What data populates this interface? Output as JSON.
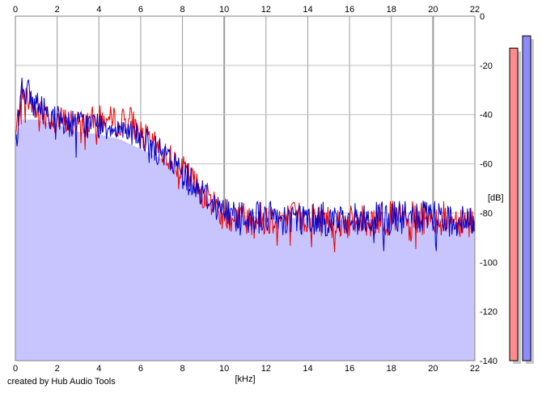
{
  "chart_data": {
    "type": "area",
    "xlabel": "[kHz]",
    "ylabel": "[dB]",
    "xlim": [
      0,
      22
    ],
    "ylim": [
      -140,
      0
    ],
    "x_ticks": [
      0,
      2,
      4,
      6,
      8,
      10,
      12,
      14,
      16,
      18,
      20,
      22
    ],
    "y_ticks": [
      0,
      -20,
      -40,
      -60,
      -80,
      -100,
      -120,
      -140
    ],
    "x_tick_labels": [
      "0",
      "2",
      "4",
      "6",
      "8",
      "10",
      "12",
      "14",
      "16",
      "18",
      "20",
      "22"
    ],
    "y_tick_labels": [
      "0",
      "-20",
      "-40",
      "-60",
      "-80",
      "-100",
      "-120",
      "-140"
    ],
    "grid": true,
    "fill_color": "#c8c4fe",
    "series_colors": [
      "#ee0000",
      "#0000cc"
    ],
    "envelope": {
      "x": [
        0,
        0.3,
        1,
        2,
        3,
        4,
        5,
        5.5,
        6,
        7,
        8,
        9,
        10,
        11,
        12,
        14,
        16,
        18,
        20,
        22
      ],
      "y": [
        -50,
        -42,
        -42,
        -44,
        -47,
        -48,
        -50,
        -52,
        -54,
        -58,
        -65,
        -72,
        -80,
        -81,
        -82,
        -82,
        -83,
        -82,
        -82,
        -84
      ]
    },
    "series": [
      {
        "x": [
          0,
          0.3,
          1,
          2,
          3,
          4,
          5,
          5.5,
          6,
          7,
          8,
          9,
          10,
          11,
          12,
          14,
          16,
          18,
          20,
          22
        ],
        "y": [
          -50,
          -30,
          -38,
          -42,
          -44,
          -42,
          -43,
          -42,
          -48,
          -55,
          -62,
          -72,
          -80,
          -82,
          -82,
          -82,
          -84,
          -82,
          -82,
          -83
        ]
      },
      {
        "x": [
          0,
          0.3,
          1,
          2,
          3,
          4,
          5,
          5.5,
          6,
          7,
          8,
          9,
          10,
          11,
          12,
          14,
          16,
          18,
          20,
          22
        ],
        "y": [
          -55,
          -28,
          -36,
          -42,
          -44,
          -44,
          -45,
          -46,
          -50,
          -56,
          -63,
          -72,
          -80,
          -81,
          -82,
          -82,
          -83,
          -82,
          -82,
          -84
        ]
      }
    ],
    "level_meters": [
      {
        "color": "#ff8c8c",
        "level_db": -13
      },
      {
        "color": "#8c8cff",
        "level_db": -8
      }
    ]
  },
  "credit": "created by Hub Audio Tools"
}
